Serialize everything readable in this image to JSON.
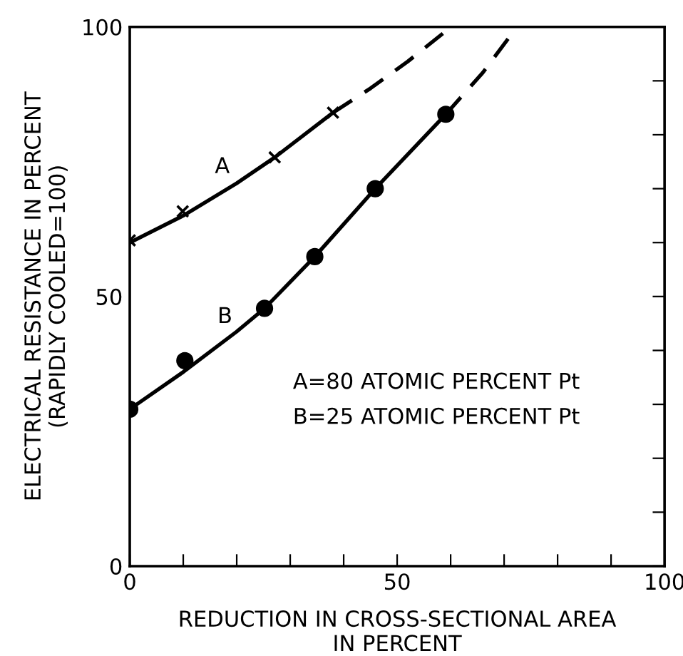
{
  "chart_data": {
    "type": "line",
    "xlabel": "REDUCTION IN CROSS-SECTIONAL AREA\nIN PERCENT",
    "ylabel": "ELECTRICAL RESISTANCE IN PERCENT\n(RAPIDLY COOLED=100)",
    "xlim": [
      0,
      100
    ],
    "ylim": [
      0,
      100
    ],
    "xticks": [
      0,
      {
        "value": 10,
        "label": null
      },
      {
        "value": 20,
        "label": null
      },
      {
        "value": 30,
        "label": null
      },
      {
        "value": 40,
        "label": null
      },
      50,
      {
        "value": 60,
        "label": null
      },
      {
        "value": 70,
        "label": null
      },
      {
        "value": 80,
        "label": null
      },
      {
        "value": 90,
        "label": null
      },
      100
    ],
    "yticks": [
      0,
      {
        "value": 10,
        "label": null
      },
      {
        "value": 20,
        "label": null
      },
      {
        "value": 30,
        "label": null
      },
      {
        "value": 40,
        "label": null
      },
      50,
      {
        "value": 60,
        "label": null
      },
      {
        "value": 70,
        "label": null
      },
      {
        "value": 80,
        "label": null
      },
      {
        "value": 90,
        "label": null
      },
      100
    ],
    "grid": false,
    "series": [
      {
        "type": "scatter",
        "marker": "cross",
        "color": "#000000",
        "x": [
          0,
          9.9,
          27.1,
          38.0
        ],
        "values": [
          60.4,
          65.8,
          75.8,
          84.1
        ]
      },
      {
        "line_style": "solid",
        "color": "#000000",
        "x": [
          0,
          10,
          20,
          27.1,
          38.0
        ],
        "values": [
          60,
          65,
          71,
          75.8,
          84.1
        ]
      },
      {
        "line_style": "dashed",
        "color": "#000000",
        "x": [
          38.0,
          45,
          52,
          60.1
        ],
        "values": [
          84.1,
          88.6,
          93.6,
          100
        ]
      },
      {
        "type": "scatter",
        "marker": "circle",
        "color": "#000000",
        "x": [
          0,
          10.3,
          25.2,
          34.6,
          45.9,
          59.1
        ],
        "values": [
          29.1,
          38.1,
          47.8,
          57.4,
          70.0,
          83.8
        ]
      },
      {
        "line_style": "solid",
        "color": "#000000",
        "x": [
          0,
          10,
          20,
          25.2,
          34.6,
          45.9,
          59.1
        ],
        "values": [
          29.1,
          36,
          43.5,
          47.8,
          57.4,
          70.0,
          83.8
        ]
      },
      {
        "line_style": "dashed",
        "color": "#000000",
        "x": [
          59.1,
          66,
          72.4
        ],
        "values": [
          83.8,
          91.5,
          100
        ]
      }
    ],
    "annotations": [
      "A",
      "B",
      "A=80 ATOMIC PERCENT Pt",
      "B=25 ATOMIC PERCENT Pt"
    ]
  }
}
